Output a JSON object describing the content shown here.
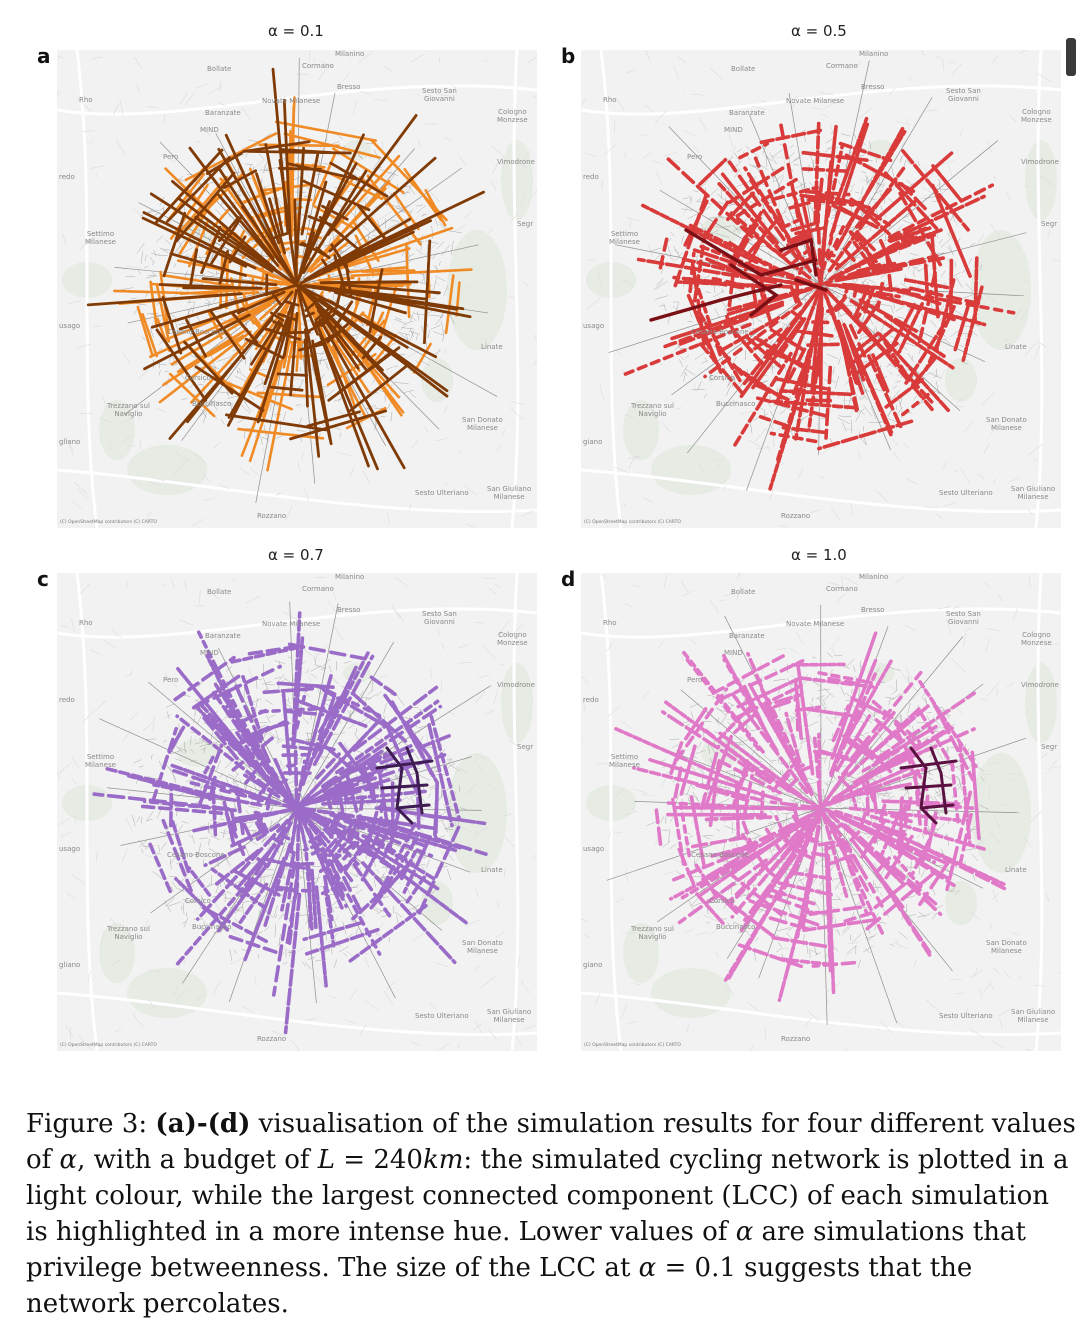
{
  "panels": [
    {
      "letter": "a",
      "title": "α = 0.1",
      "light": "#f08a25",
      "dark": "#7f3a06",
      "seed": 11,
      "towns": [
        "Bollate",
        "Cormano",
        "Bresso",
        "Sesto San\nGiovanni",
        "Novate Milanese",
        "Baranzate",
        "Rho",
        "Cologno\nMonzese",
        "MIND",
        "Pero",
        "Vimodrone",
        "Segr",
        "redo",
        "Settimo\nMilanese",
        "Cesano Boscone",
        "usago",
        "Corsico",
        "Linate",
        "Buccinasco",
        "Trezzano sul\nNaviglio",
        "San Donato\nMilanese",
        "gliano",
        "Sesto Ulteriano",
        "San Giuliano\nMilanese",
        "Rozzano",
        "Milanino"
      ],
      "attribution": "(C) OpenStreetMap contributors (C) CARTO"
    },
    {
      "letter": "b",
      "title": "α = 0.5",
      "light": "#d93a3a",
      "dark": "#7a0f16",
      "seed": 23,
      "towns": [
        "Bollate",
        "Cormano",
        "Bresso",
        "Sesto San\nGiovanni",
        "Novate Milanese",
        "Baranzate",
        "Rho",
        "Cologno\nMonzese",
        "MIND",
        "Pero",
        "Vimodrone",
        "Segr",
        "redo",
        "Settimo\nMilanese",
        "Cesano Boscone",
        "usago",
        "Corsico",
        "Linate",
        "Buccinasco",
        "Trezzano sul\nNaviglio",
        "San Donato\nMilanese",
        "giano",
        "Sesto Ulteriano",
        "San Giuliano\nMilanese",
        "Rozzano",
        "Milanino"
      ],
      "attribution": "(C) OpenStreetMap contributors (C) CARTO"
    },
    {
      "letter": "c",
      "title": "α = 0.7",
      "light": "#9a6cc8",
      "dark": "#3e1b52",
      "seed": 37,
      "towns": [
        "Bollate",
        "Cormano",
        "Bresso",
        "Sesto San\nGiovanni",
        "Novate Milanese",
        "Baranzate",
        "Rho",
        "Cologno\nMonzese",
        "MIND",
        "Pero",
        "Vimodrone",
        "Segr",
        "redo",
        "Settimo\nMilanese",
        "Cesano Boscone",
        "usago",
        "Corsico",
        "Linate",
        "Buccinasco",
        "Trezzano sul\nNaviglio",
        "San Donato\nMilanese",
        "gliano",
        "Sesto Ulteriano",
        "San Giuliano\nMilanese",
        "Rozzano",
        "Milanino"
      ],
      "attribution": "(C) OpenStreetMap contributors (C) CARTO"
    },
    {
      "letter": "d",
      "title": "α = 1.0",
      "light": "#e07ac8",
      "dark": "#5a1040",
      "seed": 53,
      "towns": [
        "Bollate",
        "Cormano",
        "Bresso",
        "Sesto San\nGiovanni",
        "Novate Milanese",
        "Baranzate",
        "Rho",
        "Cologno\nMonzese",
        "MIND",
        "Pero",
        "Vimodrone",
        "Segr",
        "redo",
        "Settimo\nMilanese",
        "Cesano Boscone",
        "usago",
        "Corsico",
        "Linate",
        "Buccinasco",
        "Trezzano sul\nNaviglio",
        "San Donato\nMilanese",
        "giano",
        "Sesto Ulteriano",
        "San Giuliano\nMilanese",
        "Rozzano",
        "Milanino"
      ],
      "attribution": "(C) OpenStreetMap contributors (C) CARTO"
    }
  ],
  "caption": {
    "prefix": "Figure 3: ",
    "bold": "(a)-(d)",
    "t1": " visualisation of the simulation results for four different values of ",
    "alpha": "α",
    "t2": ", with a budget of ",
    "L": "L",
    "t3": " = 240",
    "km": "km",
    "t4": ": the simulated cycling network is plotted in a light colour, while the largest connected component (LCC) of each simulation is highlighted in a more intense hue. Lower values of ",
    "alpha2": "α",
    "t5": " are simulations that privilege betweenness. The size of the LCC at ",
    "alpha3": "α",
    "t6": " = 0.1 suggests that the network percolates."
  }
}
